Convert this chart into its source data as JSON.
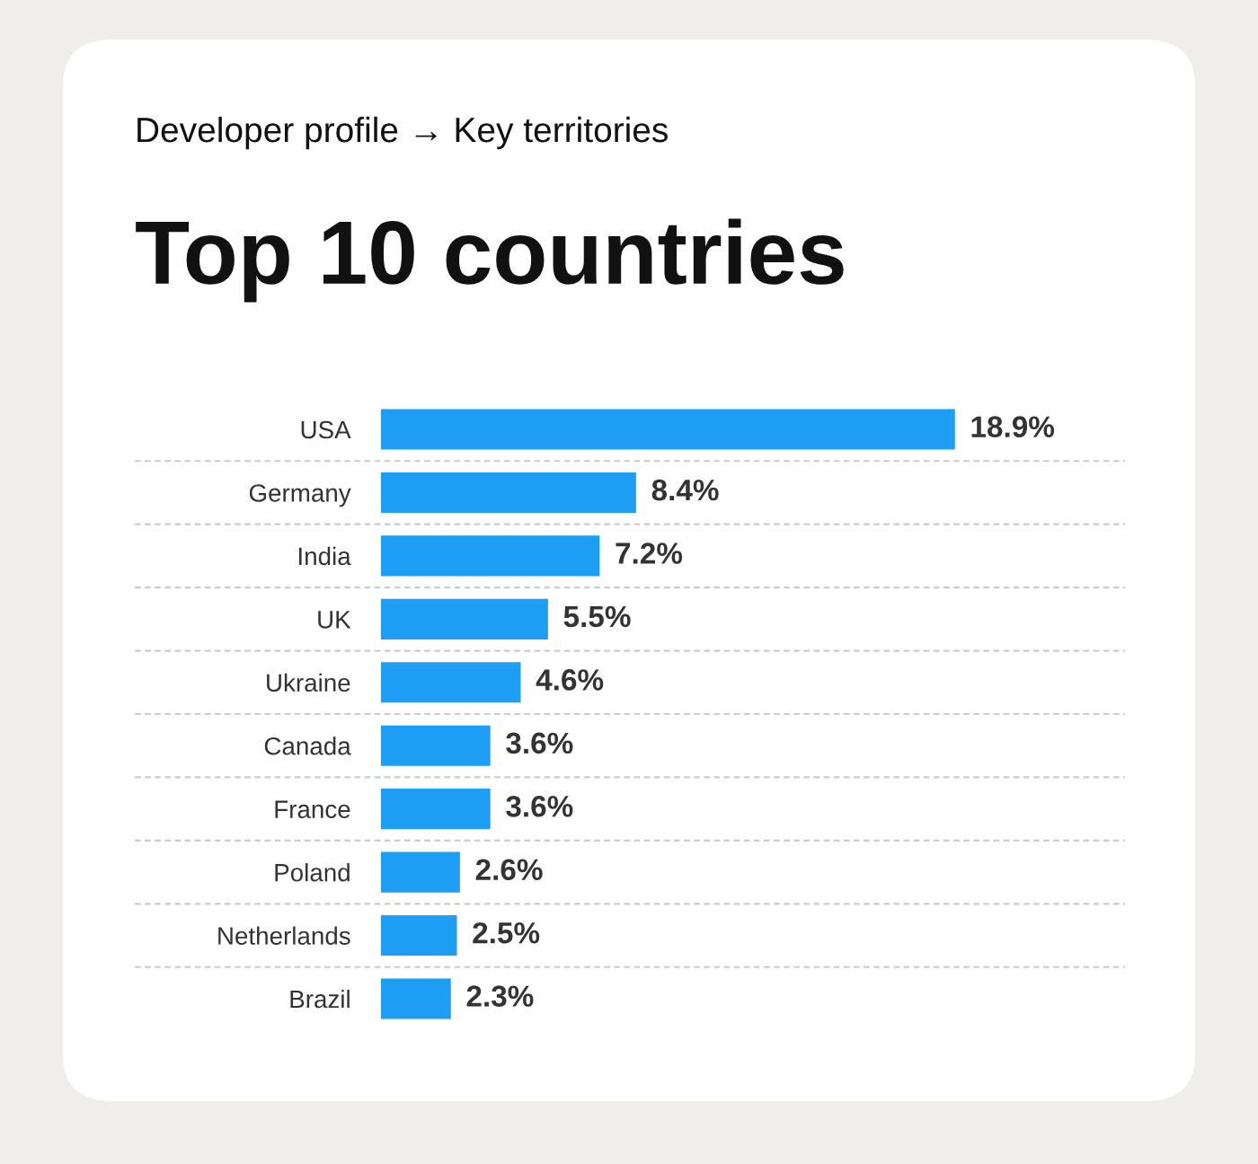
{
  "chart_data": {
    "type": "bar",
    "orientation": "horizontal",
    "title": "Top 10 countries",
    "subtitle": "Developer profile → Key territories",
    "categories": [
      "USA",
      "Germany",
      "India",
      "UK",
      "Ukraine",
      "Canada",
      "France",
      "Poland",
      "Netherlands",
      "Brazil"
    ],
    "values": [
      18.9,
      8.4,
      7.2,
      5.5,
      4.6,
      3.6,
      3.6,
      2.6,
      2.5,
      2.3
    ],
    "value_labels": [
      "18.9%",
      "8.4%",
      "7.2%",
      "5.5%",
      "4.6%",
      "3.6%",
      "3.6%",
      "2.6%",
      "2.5%",
      "2.3%"
    ],
    "color": "#1e9ef5",
    "xlim": [
      0,
      24.5
    ],
    "tick_labels": "y",
    "grid": false
  }
}
